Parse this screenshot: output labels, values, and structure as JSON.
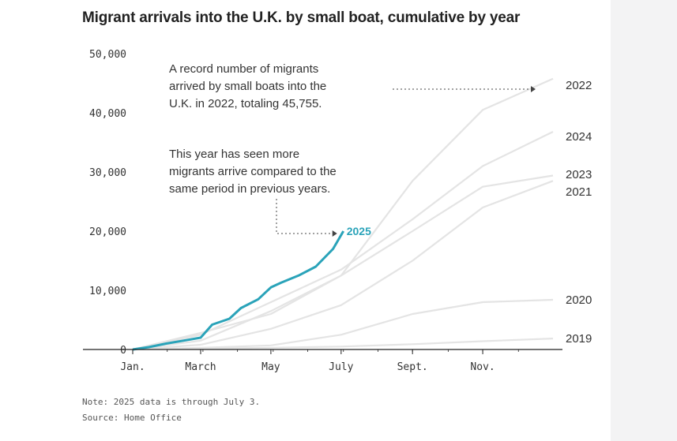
{
  "title": "Migrant arrivals into the U.K. by small boat, cumulative by year",
  "annotations": {
    "record_2022": [
      "A record number of migrants",
      "arrived by small boats into the",
      "U.K. in 2022, totaling 45,755."
    ],
    "this_year": [
      "This year has seen more",
      "migrants arrive compared to the",
      "same period in previous years."
    ]
  },
  "footnote": "Note: 2025 data is through July 3.",
  "source": "Source: Home Office",
  "colors": {
    "highlight": "#2aa3b9",
    "background_series": "#e4e4e4",
    "axis": "#222222",
    "dotted": "#444444"
  },
  "chart_data": {
    "type": "line",
    "title": "Migrant arrivals into the U.K. by small boat, cumulative by year",
    "xlabel": "",
    "ylabel": "",
    "x_domain": [
      1,
      366
    ],
    "x_unit": "day of year",
    "ylim": [
      0,
      50000
    ],
    "y_ticks": [
      "0",
      "10,000",
      "20,000",
      "30,000",
      "40,000",
      "50,000"
    ],
    "y_tick_values": [
      0,
      10000,
      20000,
      30000,
      40000,
      50000
    ],
    "x_ticks": [
      {
        "label": "Jan.",
        "day": 1
      },
      {
        "label": "March",
        "day": 60
      },
      {
        "label": "May",
        "day": 121
      },
      {
        "label": "July",
        "day": 182
      },
      {
        "label": "Sept.",
        "day": 244
      },
      {
        "label": "Nov.",
        "day": 305
      }
    ],
    "grid": false,
    "series": [
      {
        "name": "2019",
        "highlight": false,
        "points": [
          [
            1,
            0
          ],
          [
            60,
            150
          ],
          [
            121,
            300
          ],
          [
            182,
            500
          ],
          [
            244,
            900
          ],
          [
            305,
            1400
          ],
          [
            366,
            1850
          ]
        ]
      },
      {
        "name": "2020",
        "highlight": false,
        "points": [
          [
            1,
            0
          ],
          [
            60,
            300
          ],
          [
            121,
            700
          ],
          [
            182,
            2500
          ],
          [
            244,
            6000
          ],
          [
            305,
            8000
          ],
          [
            366,
            8400
          ]
        ]
      },
      {
        "name": "2021",
        "highlight": false,
        "points": [
          [
            1,
            0
          ],
          [
            60,
            800
          ],
          [
            121,
            3500
          ],
          [
            182,
            7500
          ],
          [
            244,
            15000
          ],
          [
            305,
            24000
          ],
          [
            366,
            28500
          ]
        ]
      },
      {
        "name": "2022",
        "highlight": false,
        "points": [
          [
            1,
            0
          ],
          [
            60,
            1500
          ],
          [
            121,
            6500
          ],
          [
            182,
            12500
          ],
          [
            244,
            28500
          ],
          [
            305,
            40500
          ],
          [
            366,
            45755
          ]
        ]
      },
      {
        "name": "2023",
        "highlight": false,
        "points": [
          [
            1,
            0
          ],
          [
            60,
            2800
          ],
          [
            121,
            6000
          ],
          [
            182,
            12500
          ],
          [
            244,
            20000
          ],
          [
            305,
            27500
          ],
          [
            366,
            29400
          ]
        ]
      },
      {
        "name": "2024",
        "highlight": false,
        "points": [
          [
            1,
            0
          ],
          [
            60,
            2500
          ],
          [
            121,
            8000
          ],
          [
            182,
            13500
          ],
          [
            244,
            22000
          ],
          [
            305,
            31000
          ],
          [
            366,
            36800
          ]
        ]
      },
      {
        "name": "2025",
        "highlight": true,
        "points": [
          [
            1,
            0
          ],
          [
            15,
            400
          ],
          [
            30,
            1000
          ],
          [
            45,
            1500
          ],
          [
            60,
            2000
          ],
          [
            70,
            4200
          ],
          [
            85,
            5200
          ],
          [
            95,
            7000
          ],
          [
            110,
            8500
          ],
          [
            121,
            10500
          ],
          [
            130,
            11300
          ],
          [
            145,
            12500
          ],
          [
            160,
            14000
          ],
          [
            175,
            17000
          ],
          [
            184,
            20000
          ]
        ]
      }
    ]
  }
}
